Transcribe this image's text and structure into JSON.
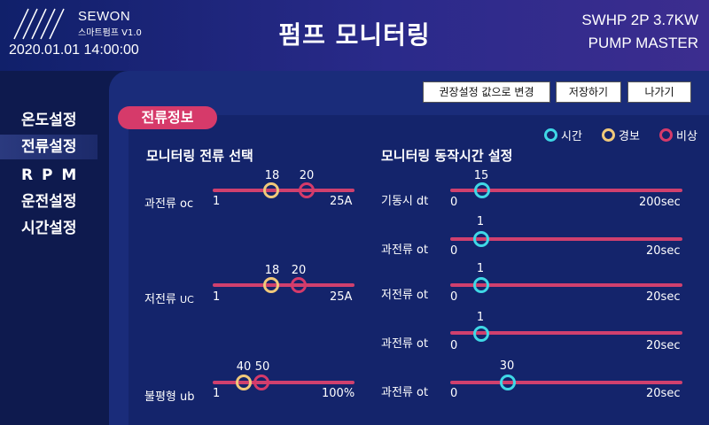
{
  "header": {
    "brand": "SEWON",
    "brand_sub": "스마트펌프 V1.0",
    "datetime": "2020.01.01 14:00:00",
    "title": "펌프 모니터링",
    "model_line1": "SWHP  2P 3.7KW",
    "model_line2": "PUMP MASTER"
  },
  "sidebar": {
    "items": [
      {
        "label": "온도설정",
        "active": false
      },
      {
        "label": "전류설정",
        "active": true
      },
      {
        "label": "R P M",
        "active": false
      },
      {
        "label": "운전설정",
        "active": false
      },
      {
        "label": "시간설정",
        "active": false
      }
    ]
  },
  "toolbar": {
    "recommended_label": "권장설정 값으로 변경",
    "save_label": "저장하기",
    "exit_label": "나가기"
  },
  "section": {
    "title": "전류정보"
  },
  "legend": {
    "time": "시간",
    "warning": "경보",
    "emergency": "비상"
  },
  "colors": {
    "time": "#3fd8e6",
    "warning": "#f1c97a",
    "emergency": "#d63a6a",
    "track": "#d0406e"
  },
  "current_select": {
    "title": "모니터링 전류 선택",
    "rows": [
      {
        "label": "과전류",
        "code": "oc",
        "min": "1",
        "max": "25A",
        "warning": "18",
        "emergency": "20"
      },
      {
        "label": "저전류",
        "code": "UC",
        "min": "1",
        "max": "25A",
        "warning": "18",
        "emergency": "20"
      },
      {
        "label": "불평형",
        "code": "ub",
        "min": "1",
        "max": "100%",
        "warning": "40",
        "emergency": "50"
      }
    ]
  },
  "time_settings": {
    "title": "모니터링 동작시간 설정",
    "rows": [
      {
        "label": "기동시",
        "code": "dt",
        "min": "0",
        "max": "200sec",
        "value": "15"
      },
      {
        "label": "과전류",
        "code": "ot",
        "min": "0",
        "max": "20sec",
        "value": "1"
      },
      {
        "label": "저전류",
        "code": "ot",
        "min": "0",
        "max": "20sec",
        "value": "1"
      },
      {
        "label": "과전류",
        "code": "ot",
        "min": "0",
        "max": "20sec",
        "value": "1"
      },
      {
        "label": "과전류",
        "code": "ot",
        "min": "0",
        "max": "20sec",
        "value": "30"
      }
    ]
  }
}
